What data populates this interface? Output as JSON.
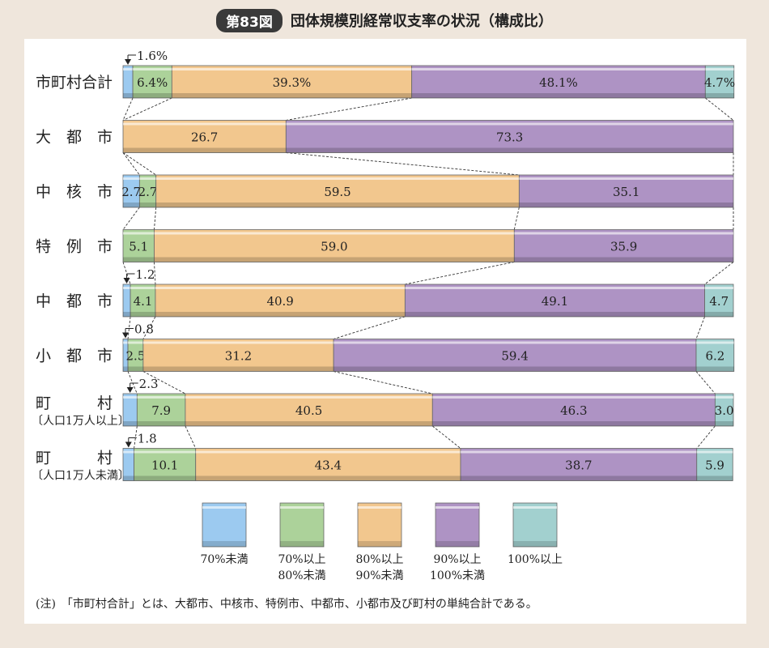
{
  "header": {
    "badge": "第83図",
    "title": "団体規模別経常収支率の状況（構成比）"
  },
  "note": "(注)　「市町村合計」とは、大都市、中核市、特例市、中都市、小都市及び町村の単純合計である。",
  "chart_data": {
    "type": "bar",
    "orientation": "horizontal",
    "stacked": true,
    "xlim": [
      0,
      100
    ],
    "categories": [
      {
        "label": "市町村合計"
      },
      {
        "label": "大　都　市"
      },
      {
        "label": "中　核　市"
      },
      {
        "label": "特　例　市"
      },
      {
        "label": "中　都　市"
      },
      {
        "label": "小　都　市"
      },
      {
        "label": "町　　　村",
        "sub": "〔人口1万人以上〕"
      },
      {
        "label": "町　　　村",
        "sub": "〔人口1万人未満〕"
      }
    ],
    "series": [
      {
        "name": "70%未満",
        "color": "#9ccaf0",
        "values": [
          1.6,
          0,
          2.7,
          0,
          1.2,
          0.8,
          2.3,
          1.8
        ],
        "labels": [
          "1.6%",
          "",
          "2.7",
          "",
          "1.2",
          "0.8",
          "2.3",
          "1.8"
        ],
        "callout": [
          true,
          false,
          false,
          false,
          true,
          true,
          true,
          true
        ]
      },
      {
        "name": "70%以上\n80%未満",
        "color": "#acd29a",
        "values": [
          6.4,
          0,
          2.7,
          5.1,
          4.1,
          2.5,
          7.9,
          10.1
        ],
        "labels": [
          "6.4%",
          "",
          "2.7",
          "5.1",
          "4.1",
          "2.5",
          "7.9",
          "10.1"
        ]
      },
      {
        "name": "80%以上\n90%未満",
        "color": "#f2c78e",
        "values": [
          39.3,
          26.7,
          59.5,
          59.0,
          40.9,
          31.2,
          40.5,
          43.4
        ],
        "labels": [
          "39.3%",
          "26.7",
          "59.5",
          "59.0",
          "40.9",
          "31.2",
          "40.5",
          "43.4"
        ]
      },
      {
        "name": "90%以上\n100%未満",
        "color": "#ae93c4",
        "values": [
          48.1,
          73.3,
          35.1,
          35.9,
          49.1,
          59.4,
          46.3,
          38.7
        ],
        "labels": [
          "48.1%",
          "73.3",
          "35.1",
          "35.9",
          "49.1",
          "59.4",
          "46.3",
          "38.7"
        ]
      },
      {
        "name": "100%以上",
        "color": "#a2d0cf",
        "values": [
          4.7,
          0,
          0,
          0,
          4.7,
          6.2,
          3.0,
          5.9
        ],
        "labels": [
          "4.7%",
          "",
          "",
          "",
          "4.7",
          "6.2",
          "3.0",
          "5.9"
        ]
      }
    ]
  }
}
